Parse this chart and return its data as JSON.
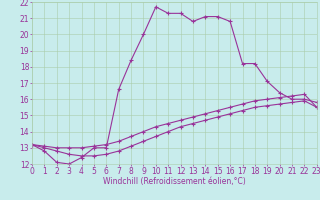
{
  "title": "",
  "xlabel": "Windchill (Refroidissement éolien,°C)",
  "bg_color": "#c8ecec",
  "line_color": "#993399",
  "grid_color": "#aaccaa",
  "xmin": 0,
  "xmax": 23,
  "ymin": 12,
  "ymax": 22,
  "line1_x": [
    0,
    1,
    2,
    3,
    4,
    5,
    6,
    7,
    8,
    9,
    10,
    11,
    12,
    13,
    14,
    15,
    16,
    17,
    18,
    19,
    20,
    21,
    22,
    23
  ],
  "line1_y": [
    13.2,
    12.8,
    12.1,
    12.0,
    12.4,
    13.0,
    13.0,
    16.6,
    18.4,
    20.0,
    21.7,
    21.3,
    21.3,
    20.8,
    21.1,
    21.1,
    20.8,
    18.2,
    18.2,
    17.1,
    16.4,
    16.0,
    16.0,
    15.8
  ],
  "line2_x": [
    0,
    1,
    2,
    3,
    4,
    5,
    6,
    7,
    8,
    9,
    10,
    11,
    12,
    13,
    14,
    15,
    16,
    17,
    18,
    19,
    20,
    21,
    22,
    23
  ],
  "line2_y": [
    13.2,
    13.1,
    13.0,
    13.0,
    13.0,
    13.1,
    13.2,
    13.4,
    13.7,
    14.0,
    14.3,
    14.5,
    14.7,
    14.9,
    15.1,
    15.3,
    15.5,
    15.7,
    15.9,
    16.0,
    16.1,
    16.2,
    16.3,
    15.5
  ],
  "line3_x": [
    0,
    1,
    2,
    3,
    4,
    5,
    6,
    7,
    8,
    9,
    10,
    11,
    12,
    13,
    14,
    15,
    16,
    17,
    18,
    19,
    20,
    21,
    22,
    23
  ],
  "line3_y": [
    13.2,
    13.0,
    12.8,
    12.6,
    12.5,
    12.5,
    12.6,
    12.8,
    13.1,
    13.4,
    13.7,
    14.0,
    14.3,
    14.5,
    14.7,
    14.9,
    15.1,
    15.3,
    15.5,
    15.6,
    15.7,
    15.8,
    15.9,
    15.5
  ],
  "tick_fontsize": 5.5,
  "xlabel_fontsize": 5.5
}
